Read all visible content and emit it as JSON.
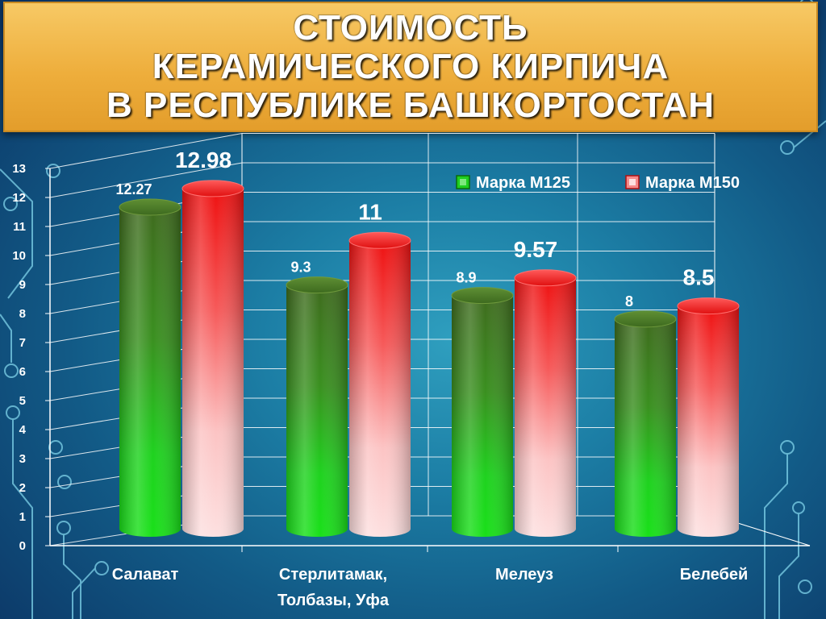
{
  "title": {
    "line1": "СТОИМОСТЬ",
    "line2": "КЕРАМИЧЕСКОГО КИРПИЧА",
    "line3": "В РЕСПУБЛИКЕ БАШКОРТОСТАН"
  },
  "chart_data": {
    "type": "bar",
    "categories": [
      [
        "Салават"
      ],
      [
        "Стерлитамак,",
        "Толбазы, Уфа"
      ],
      [
        "Мелеуз"
      ],
      [
        "Белебей"
      ]
    ],
    "series": [
      {
        "name": "Марка М125",
        "values": [
          12.27,
          9.3,
          8.9,
          8
        ],
        "labels": [
          "12.27",
          "9.3",
          "8.9",
          "8"
        ],
        "color": "#1fcf1f"
      },
      {
        "name": "Марка М150",
        "values": [
          12.98,
          11,
          9.57,
          8.5
        ],
        "labels": [
          "12.98",
          "11",
          "9.57",
          "8.5"
        ],
        "color": "#e81010"
      }
    ],
    "ylim": [
      0,
      13
    ],
    "yticks": [
      "0",
      "1",
      "2",
      "3",
      "4",
      "5",
      "6",
      "7",
      "8",
      "9",
      "10",
      "11",
      "12",
      "13"
    ],
    "grid": true,
    "legend": "top-right",
    "xlabel": "",
    "ylabel": ""
  }
}
